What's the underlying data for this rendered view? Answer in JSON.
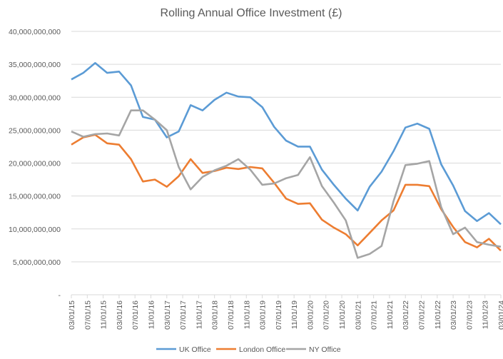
{
  "chart_data": {
    "type": "line",
    "title": "Rolling Annual Office Investment (£)",
    "xlabel": "",
    "ylabel": "",
    "ylim": [
      0,
      40000000000
    ],
    "y_ticks": [
      0,
      5000000000,
      10000000000,
      15000000000,
      20000000000,
      25000000000,
      30000000000,
      35000000000,
      40000000000
    ],
    "y_tick_labels": [
      "-",
      "5,000,000,000",
      "10,000,000,000",
      "15,000,000,000",
      "20,000,000,000",
      "25,000,000,000",
      "30,000,000,000",
      "35,000,000,000",
      "40,000,000,000"
    ],
    "x_tick_labels": [
      "03/01/15",
      "07/01/15",
      "11/01/15",
      "03/01/16",
      "07/01/16",
      "11/01/16",
      "03/01/17",
      "07/01/17",
      "11/01/17",
      "03/01/18",
      "07/01/18",
      "11/01/18",
      "03/01/19",
      "07/01/19",
      "11/01/19",
      "03/01/20",
      "07/01/20",
      "11/01/20",
      "03/01/21",
      "07/01/21",
      "11/01/21",
      "03/01/22",
      "07/01/22",
      "11/01/22",
      "03/01/23",
      "07/01/23",
      "11/01/23",
      "03/01/24"
    ],
    "x_tick_step_months": 4,
    "point_step_months": 3,
    "grid": true,
    "legend_position": "bottom",
    "series": [
      {
        "name": "UK Office",
        "color": "#5B9BD5",
        "values_bn": [
          32.7,
          33.7,
          35.2,
          33.7,
          33.9,
          31.8,
          27.0,
          26.6,
          23.9,
          24.8,
          28.8,
          28.0,
          29.6,
          30.7,
          30.1,
          30.0,
          28.5,
          25.5,
          23.4,
          22.5,
          22.5,
          19.0,
          16.7,
          14.6,
          12.8,
          16.4,
          18.7,
          21.8,
          25.4,
          26.0,
          25.2,
          19.8,
          16.6,
          12.7,
          11.2,
          12.4,
          10.7
        ]
      },
      {
        "name": "London Office",
        "color": "#ED7D31",
        "values_bn": [
          22.8,
          23.9,
          24.3,
          23.0,
          22.8,
          20.6,
          17.2,
          17.5,
          16.4,
          18.0,
          20.6,
          18.5,
          18.8,
          19.3,
          19.1,
          19.4,
          19.2,
          17.0,
          14.6,
          13.8,
          13.9,
          11.4,
          10.2,
          9.2,
          7.5,
          9.4,
          11.3,
          12.8,
          16.7,
          16.7,
          16.5,
          13.0,
          10.3,
          8.0,
          7.2,
          8.5,
          6.7
        ]
      },
      {
        "name": "NY Office",
        "color": "#A5A5A5",
        "values_bn": [
          24.8,
          24.0,
          24.4,
          24.5,
          24.2,
          28.0,
          28.0,
          26.6,
          25.0,
          19.4,
          16.0,
          17.9,
          18.9,
          19.6,
          20.6,
          19.0,
          16.7,
          16.9,
          17.7,
          18.2,
          20.9,
          16.5,
          14.0,
          11.3,
          5.6,
          6.2,
          7.4,
          14.2,
          19.7,
          19.9,
          20.3,
          13.3,
          9.2,
          10.2,
          8.0,
          7.6,
          7.3
        ]
      }
    ]
  }
}
